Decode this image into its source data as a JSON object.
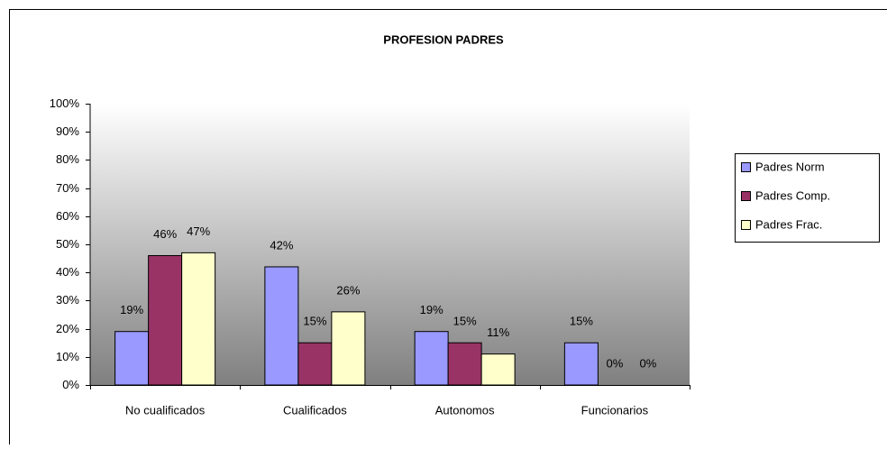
{
  "chart_data": {
    "type": "bar",
    "title": "PROFESION PADRES",
    "categories": [
      "No cualificados",
      "Cualificados",
      "Autonomos",
      "Funcionarios"
    ],
    "series": [
      {
        "name": "Padres Norm",
        "color": "#9999ff",
        "values": [
          19,
          42,
          19,
          15
        ],
        "value_labels": [
          "19%",
          "42%",
          "19%",
          "15%"
        ]
      },
      {
        "name": "Padres Comp.",
        "color": "#993366",
        "values": [
          46,
          15,
          15,
          0
        ],
        "value_labels": [
          "46%",
          "15%",
          "15%",
          "0%"
        ]
      },
      {
        "name": "Padres Frac.",
        "color": "#ffffcc",
        "values": [
          47,
          26,
          11,
          0
        ],
        "value_labels": [
          "47%",
          "26%",
          "11%",
          "0%"
        ]
      }
    ],
    "ylim": [
      0,
      100
    ],
    "yticks": [
      {
        "value": 0,
        "label": "0%"
      },
      {
        "value": 10,
        "label": "10%"
      },
      {
        "value": 20,
        "label": "20%"
      },
      {
        "value": 30,
        "label": "30%"
      },
      {
        "value": 40,
        "label": "40%"
      },
      {
        "value": 50,
        "label": "50%"
      },
      {
        "value": 60,
        "label": "60%"
      },
      {
        "value": 70,
        "label": "70%"
      },
      {
        "value": 80,
        "label": "80%"
      },
      {
        "value": 90,
        "label": "90%"
      },
      {
        "value": 100,
        "label": "100%"
      }
    ],
    "legend": "right"
  }
}
